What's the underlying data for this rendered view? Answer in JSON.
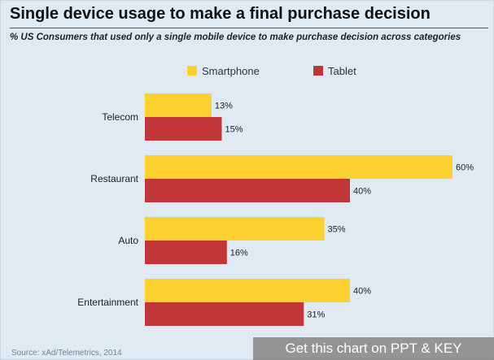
{
  "page": {
    "title": "Single device usage to make a final purchase decision",
    "subtitle": "% US Consumers that used only a single mobile device to make purchase decision across categories",
    "source": "Source: xAd/Telemetrics, 2014",
    "cta_label": "Get this chart on PPT & KEY"
  },
  "colors": {
    "smartphone": "#fdd12f",
    "tablet": "#c13638",
    "background": "#dfeaf2"
  },
  "chart_data": {
    "type": "bar",
    "orientation": "horizontal",
    "title": "Single device usage to make a final purchase decision",
    "subtitle": "% US Consumers that used only a single mobile device to make purchase decision across categories",
    "categories": [
      "Telecom",
      "Restaurant",
      "Auto",
      "Entertainment"
    ],
    "series": [
      {
        "name": "Smartphone",
        "values": [
          13,
          60,
          35,
          40
        ],
        "labels": [
          "13%",
          "60%",
          "35%",
          "40%"
        ]
      },
      {
        "name": "Tablet",
        "values": [
          15,
          40,
          16,
          31
        ],
        "labels": [
          "15%",
          "40%",
          "16%",
          "31%"
        ]
      }
    ],
    "xlim": [
      0,
      60
    ],
    "grid": false,
    "legend_placement": "top"
  }
}
